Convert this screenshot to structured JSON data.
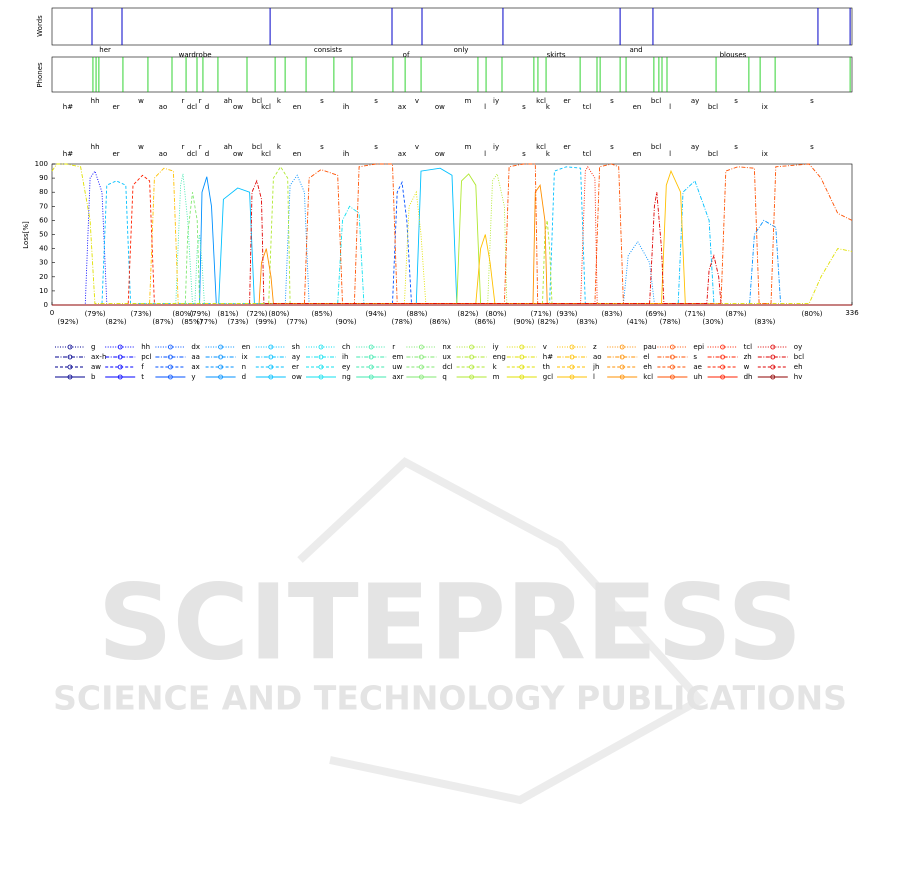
{
  "words_panel": {
    "ylabel": "Words",
    "color": "#0000c8",
    "boundaries": [
      16.8,
      29.4,
      91.6,
      142.8,
      155.4,
      189.4,
      238.6,
      252.4,
      321.7,
      335.2
    ],
    "words": [
      "her",
      "wardrobe",
      "consists",
      "of",
      "only",
      "skirts",
      "and",
      "blouses"
    ],
    "word_x": [
      22.3,
      60.1,
      115.9,
      148.7,
      171.8,
      211.7,
      245.3,
      286.0
    ]
  },
  "phones_panel": {
    "ylabel": "Phones",
    "color": "#00c800",
    "boundaries": [
      17.2,
      18.5,
      19.7,
      29.8,
      40.3,
      50.4,
      56.3,
      60.9,
      63.4,
      69.7,
      81.9,
      93.7,
      97.9,
      106.7,
      118.4,
      126,
      143.2,
      148.3,
      155,
      178.9,
      182.3,
      189,
      202.4,
      204.1,
      207.5,
      221.8,
      228.9,
      230.2,
      238.6,
      241.1,
      252.8,
      254.9,
      256.2,
      258.3,
      278.9,
      292.7,
      297.4,
      303.7,
      335.2
    ]
  },
  "chart_data": {
    "type": "line",
    "ylabel": "Loss[%]",
    "xlim": [
      0,
      336
    ],
    "ylim": [
      0,
      100
    ],
    "xticks": [
      0,
      336
    ],
    "yticks": [
      0,
      10,
      20,
      30,
      40,
      50,
      60,
      70,
      80,
      90,
      100
    ],
    "phones": [
      "h#",
      "hh",
      "er",
      "w",
      "ao",
      "r",
      "dcl",
      "r",
      "d",
      "ah",
      "ow",
      "bcl",
      "kcl",
      "k",
      "en",
      "s",
      "ih",
      "s",
      "ax",
      "v",
      "ow",
      "m",
      "l",
      "iy",
      "s",
      "kcl",
      "k",
      "er",
      "tcl",
      "s",
      "en",
      "bcl",
      "l",
      "ay",
      "bcl",
      "s",
      "ix",
      "s"
    ],
    "phone_x": [
      6.7,
      18.1,
      26.9,
      37.4,
      46.6,
      55.0,
      58.8,
      62.2,
      65.1,
      73.9,
      78.1,
      86.1,
      89.9,
      95.3,
      102.9,
      113.4,
      123.5,
      136.1,
      147.0,
      153.3,
      162.9,
      174.7,
      181.9,
      186.5,
      198.2,
      205.4,
      208.3,
      216.3,
      224.7,
      235.2,
      245.7,
      253.7,
      259.6,
      270.1,
      277.6,
      287.3,
      299.4,
      319.2
    ],
    "accuracy": {
      "values": [
        92,
        79,
        82,
        73,
        87,
        80,
        85,
        79,
        77,
        81,
        73,
        72,
        99,
        80,
        77,
        85,
        90,
        94,
        78,
        88,
        86,
        82,
        86,
        80,
        90,
        71,
        82,
        93,
        83,
        83,
        41,
        69,
        78,
        71,
        30,
        87,
        83,
        80
      ],
      "value_labels": [
        "(92%)",
        "(79%)",
        "(82%)",
        "(73%)",
        "(87%)",
        "(80%)",
        "(85%)",
        "(79%)",
        "(77%)",
        "(81%)",
        "(73%)",
        "(72%)",
        "(99%)",
        "(80%)",
        "(77%)",
        "(85%)",
        "(90%)",
        "(94%)",
        "(78%)",
        "(88%)",
        "(86%)",
        "(82%)",
        "(86%)",
        "(80%)",
        "(90%)",
        "(71%)",
        "(82%)",
        "(93%)",
        "(83%)",
        "(83%)",
        "(41%)",
        "(69%)",
        "(78%)",
        "(71%)",
        "(30%)",
        "(87%)",
        "(83%)",
        "(80%)"
      ]
    },
    "series": [
      {
        "name": "g",
        "color": "#00008f",
        "x": [
          0,
          336
        ],
        "values": [
          0,
          0
        ]
      },
      {
        "name": "ax-h",
        "color": "#00008f",
        "x": [
          0,
          336
        ],
        "values": [
          0,
          0
        ]
      },
      {
        "name": "aw",
        "color": "#00008f",
        "x": [
          0,
          336
        ],
        "values": [
          0,
          0
        ]
      },
      {
        "name": "b",
        "color": "#00008f",
        "x": [
          0,
          336
        ],
        "values": [
          0,
          0
        ]
      },
      {
        "name": "hh",
        "color": "#0000ff",
        "x": [
          14,
          16,
          18,
          21,
          23
        ],
        "values": [
          1,
          90,
          95,
          80,
          1
        ]
      },
      {
        "name": "pcl",
        "color": "#0000ff",
        "x": [
          0,
          336
        ],
        "values": [
          0,
          0
        ]
      },
      {
        "name": "f",
        "color": "#0000ff",
        "x": [
          0,
          336
        ],
        "values": [
          0,
          0
        ]
      },
      {
        "name": "t",
        "color": "#0000ff",
        "x": [
          0,
          336
        ],
        "values": [
          0,
          0
        ]
      },
      {
        "name": "dx",
        "color": "#0050ff",
        "x": [
          0,
          336
        ],
        "values": [
          0,
          0
        ]
      },
      {
        "name": "aa",
        "color": "#0050ff",
        "x": [
          0,
          336
        ],
        "values": [
          0,
          0
        ]
      },
      {
        "name": "ax",
        "color": "#0050ff",
        "x": [
          143,
          145,
          147,
          149,
          151
        ],
        "values": [
          1,
          80,
          87,
          60,
          1
        ]
      },
      {
        "name": "y",
        "color": "#0050ff",
        "x": [
          0,
          336
        ],
        "values": [
          0,
          0
        ]
      },
      {
        "name": "en",
        "color": "#0090ff",
        "x": [
          98,
          100,
          103,
          106,
          108,
          240,
          242,
          246,
          251,
          253
        ],
        "values": [
          1,
          85,
          92,
          80,
          1,
          1,
          35,
          45,
          30,
          1
        ]
      },
      {
        "name": "ix",
        "color": "#0090ff",
        "x": [
          293,
          295,
          299,
          304,
          306
        ],
        "values": [
          1,
          50,
          60,
          55,
          1
        ]
      },
      {
        "name": "n",
        "color": "#0090ff",
        "x": [
          0,
          336
        ],
        "values": [
          0,
          0
        ]
      },
      {
        "name": "d",
        "color": "#0090ff",
        "x": [
          62,
          63,
          65,
          67,
          69
        ],
        "values": [
          1,
          80,
          91,
          70,
          1
        ]
      },
      {
        "name": "sh",
        "color": "#00c0ff",
        "x": [
          0,
          336
        ],
        "values": [
          0,
          0
        ]
      },
      {
        "name": "ay",
        "color": "#00c0ff",
        "x": [
          263,
          265,
          270,
          276,
          278
        ],
        "values": [
          1,
          80,
          88,
          60,
          1
        ]
      },
      {
        "name": "er",
        "color": "#00c0ff",
        "x": [
          21,
          23,
          27,
          31,
          33,
          209,
          211,
          216,
          222,
          224
        ],
        "values": [
          1,
          85,
          88,
          85,
          1,
          1,
          95,
          98,
          97,
          1
        ]
      },
      {
        "name": "ow",
        "color": "#00c0ff",
        "x": [
          70,
          72,
          78,
          83,
          85,
          153,
          155,
          163,
          168,
          170
        ],
        "values": [
          1,
          75,
          83,
          80,
          1,
          1,
          95,
          97,
          92,
          1
        ]
      },
      {
        "name": "ch",
        "color": "#10e0ef",
        "x": [
          0,
          336
        ],
        "values": [
          0,
          0
        ]
      },
      {
        "name": "ih",
        "color": "#10e0ef",
        "x": [
          120,
          122,
          125,
          129,
          131
        ],
        "values": [
          1,
          60,
          70,
          65,
          1
        ]
      },
      {
        "name": "ey",
        "color": "#10e0ef",
        "x": [
          0,
          336
        ],
        "values": [
          0,
          0
        ]
      },
      {
        "name": "ng",
        "color": "#10e0ef",
        "x": [
          0,
          336
        ],
        "values": [
          0,
          0
        ]
      },
      {
        "name": "r",
        "color": "#40e8af",
        "x": [
          52,
          54,
          55,
          57,
          59,
          60,
          61,
          62,
          63,
          64
        ],
        "values": [
          1,
          85,
          93,
          60,
          1,
          1,
          40,
          50,
          30,
          1
        ]
      },
      {
        "name": "em",
        "color": "#40e8af",
        "x": [
          0,
          336
        ],
        "values": [
          0,
          0
        ]
      },
      {
        "name": "uw",
        "color": "#40e8af",
        "x": [
          0,
          336
        ],
        "values": [
          0,
          0
        ]
      },
      {
        "name": "axr",
        "color": "#40e8af",
        "x": [
          0,
          336
        ],
        "values": [
          0,
          0
        ]
      },
      {
        "name": "nx",
        "color": "#80e870",
        "x": [
          0,
          336
        ],
        "values": [
          0,
          0
        ]
      },
      {
        "name": "ux",
        "color": "#80e870",
        "x": [
          0,
          336
        ],
        "values": [
          0,
          0
        ]
      },
      {
        "name": "dcl",
        "color": "#80e870",
        "x": [
          56,
          57,
          59,
          61,
          62
        ],
        "values": [
          1,
          50,
          80,
          60,
          1
        ]
      },
      {
        "name": "q",
        "color": "#80e870",
        "x": [
          0,
          336
        ],
        "values": [
          0,
          0
        ]
      },
      {
        "name": "iy",
        "color": "#b0e830",
        "x": [
          183,
          185,
          187,
          190,
          191
        ],
        "values": [
          1,
          88,
          93,
          70,
          1
        ]
      },
      {
        "name": "eng",
        "color": "#b0e830",
        "x": [
          0,
          336
        ],
        "values": [
          0,
          0
        ]
      },
      {
        "name": "k",
        "color": "#b0e830",
        "x": [
          91,
          93,
          96,
          99,
          100,
          206,
          207,
          208,
          209,
          210
        ],
        "values": [
          1,
          90,
          98,
          90,
          1,
          1,
          50,
          60,
          40,
          1
        ]
      },
      {
        "name": "m",
        "color": "#b0e830",
        "x": [
          170,
          172,
          175,
          178,
          180
        ],
        "values": [
          1,
          88,
          93,
          85,
          1
        ]
      },
      {
        "name": "v",
        "color": "#e0e000",
        "x": [
          148,
          150,
          153,
          155,
          157
        ],
        "values": [
          1,
          70,
          80,
          50,
          1
        ]
      },
      {
        "name": "h#",
        "color": "#e0e000",
        "x": [
          0,
          2,
          6,
          12,
          16,
          18,
          318,
          323,
          330,
          336
        ],
        "values": [
          95,
          100,
          100,
          98,
          60,
          1,
          1,
          20,
          40,
          38
        ]
      },
      {
        "name": "th",
        "color": "#e0e000",
        "x": [
          0,
          336
        ],
        "values": [
          0,
          0
        ]
      },
      {
        "name": "gcl",
        "color": "#e0e000",
        "x": [
          0,
          336
        ],
        "values": [
          0,
          0
        ]
      },
      {
        "name": "z",
        "color": "#ffc000",
        "x": [
          0,
          336
        ],
        "values": [
          0,
          0
        ]
      },
      {
        "name": "ao",
        "color": "#ffc000",
        "x": [
          41,
          43,
          47,
          51,
          53
        ],
        "values": [
          1,
          90,
          97,
          95,
          1
        ]
      },
      {
        "name": "jh",
        "color": "#ffc000",
        "x": [
          0,
          336
        ],
        "values": [
          0,
          0
        ]
      },
      {
        "name": "l",
        "color": "#ffc000",
        "x": [
          178,
          180,
          182,
          184,
          186,
          256,
          258,
          260,
          264,
          266
        ],
        "values": [
          1,
          40,
          50,
          30,
          1,
          1,
          85,
          95,
          80,
          1
        ]
      },
      {
        "name": "pau",
        "color": "#ff9000",
        "x": [
          0,
          336
        ],
        "values": [
          0,
          0
        ]
      },
      {
        "name": "el",
        "color": "#ff9000",
        "x": [
          0,
          336
        ],
        "values": [
          0,
          0
        ]
      },
      {
        "name": "eh",
        "color": "#ff9000",
        "x": [
          0,
          336
        ],
        "values": [
          0,
          0
        ]
      },
      {
        "name": "kcl",
        "color": "#ff9000",
        "x": [
          87,
          88,
          90,
          92,
          93,
          202,
          203,
          205,
          207,
          208
        ],
        "values": [
          1,
          30,
          40,
          20,
          1,
          1,
          80,
          85,
          60,
          1
        ]
      },
      {
        "name": "epi",
        "color": "#ff5000",
        "x": [
          0,
          336
        ],
        "values": [
          0,
          0
        ]
      },
      {
        "name": "s",
        "color": "#ff5000",
        "x": [
          106,
          108,
          113,
          120,
          122,
          127,
          129,
          136,
          143,
          145,
          190,
          192,
          198,
          203,
          204,
          228,
          230,
          235,
          238,
          240,
          281,
          283,
          288,
          295,
          297,
          302,
          304,
          318,
          323,
          330,
          336
        ],
        "values": [
          1,
          90,
          96,
          92,
          1,
          1,
          98,
          100,
          100,
          1,
          1,
          98,
          100,
          100,
          1,
          1,
          98,
          100,
          98,
          1,
          1,
          95,
          98,
          97,
          1,
          1,
          98,
          100,
          90,
          65,
          60
        ]
      },
      {
        "name": "ae",
        "color": "#ff5000",
        "x": [
          0,
          336
        ],
        "values": [
          0,
          0
        ]
      },
      {
        "name": "uh",
        "color": "#ff5000",
        "x": [
          0,
          336
        ],
        "values": [
          0,
          0
        ]
      },
      {
        "name": "tcl",
        "color": "#ff2000",
        "x": [
          222,
          224,
          225,
          228,
          229
        ],
        "values": [
          1,
          95,
          98,
          90,
          1
        ]
      },
      {
        "name": "zh",
        "color": "#ff2000",
        "x": [
          0,
          336
        ],
        "values": [
          0,
          0
        ]
      },
      {
        "name": "w",
        "color": "#ff2000",
        "x": [
          32,
          34,
          38,
          41,
          43
        ],
        "values": [
          1,
          85,
          92,
          88,
          1
        ]
      },
      {
        "name": "dh",
        "color": "#ff2000",
        "x": [
          0,
          336
        ],
        "values": [
          0,
          0
        ]
      },
      {
        "name": "oy",
        "color": "#df0000",
        "x": [
          0,
          336
        ],
        "values": [
          0,
          0
        ]
      },
      {
        "name": "bcl",
        "color": "#df0000",
        "x": [
          83,
          84,
          86,
          88,
          89,
          251,
          253,
          254,
          256,
          257,
          275,
          276,
          278,
          280,
          281
        ],
        "values": [
          1,
          80,
          88,
          75,
          1,
          1,
          70,
          80,
          40,
          1,
          1,
          25,
          35,
          20,
          1
        ]
      },
      {
        "name": "eh",
        "color": "#df0000",
        "x": [
          0,
          336
        ],
        "values": [
          0,
          0
        ]
      },
      {
        "name": "hv",
        "color": "#8f0000",
        "x": [
          0,
          336
        ],
        "values": [
          0,
          0
        ]
      }
    ]
  },
  "watermark": {
    "title": "SCITEPRESS",
    "subtitle": "SCIENCE AND TECHNOLOGY PUBLICATIONS"
  }
}
